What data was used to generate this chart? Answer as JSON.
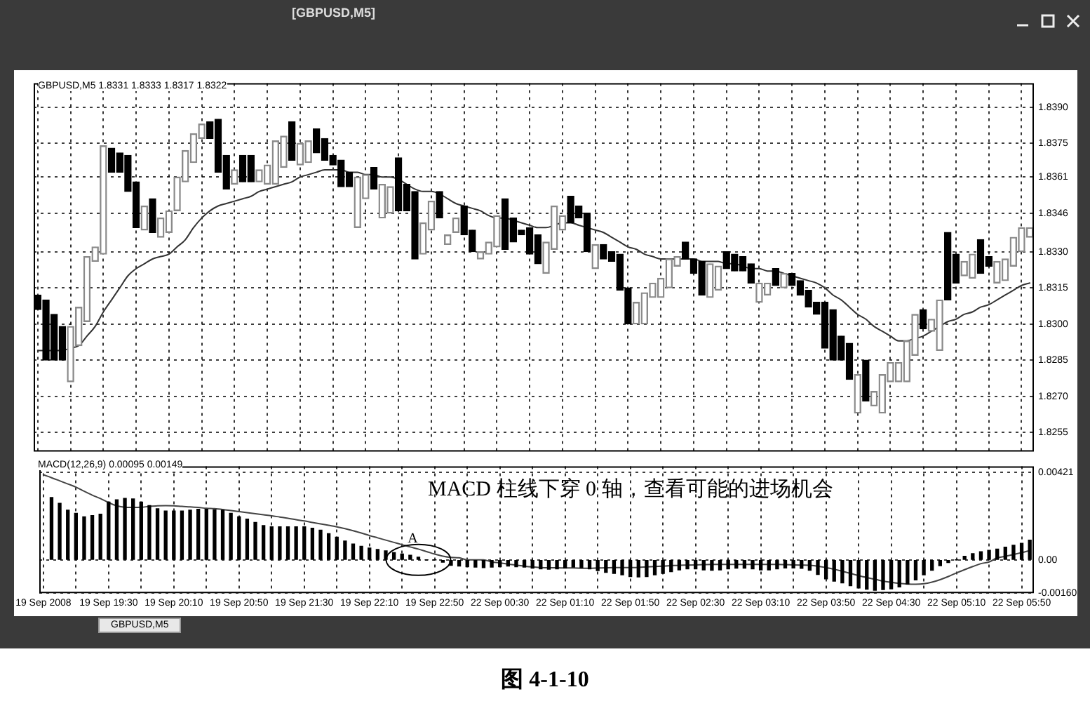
{
  "chart_data": [
    {
      "type": "candlestick",
      "title": "GBPUSD,M5 1.8331 1.8333 1.8317 1.8322",
      "annotations": [
        "[GBPUSD,M5]"
      ],
      "categories": [
        null,
        null,
        null,
        null,
        null,
        null,
        null,
        null,
        null,
        null,
        null,
        null,
        null,
        null,
        null,
        null,
        null,
        null,
        null,
        null,
        null,
        null,
        null,
        null,
        null,
        null,
        null,
        null,
        null,
        null,
        null,
        null,
        null,
        null,
        null,
        null,
        null,
        null,
        null,
        null,
        null,
        null,
        null,
        null,
        null,
        null,
        null,
        null,
        null,
        null,
        null,
        null,
        null,
        null,
        null,
        null,
        null,
        null,
        null,
        null,
        null,
        null,
        null,
        null,
        null,
        null,
        null,
        null,
        null,
        null,
        null,
        null,
        null,
        null,
        null,
        null,
        null,
        null,
        null,
        null,
        null,
        null,
        null,
        null,
        null,
        null,
        null,
        null,
        null,
        null,
        null,
        null,
        null,
        null,
        null,
        null,
        null,
        null,
        null,
        null,
        null,
        null,
        null,
        null,
        null,
        null,
        null,
        null,
        null,
        null,
        null,
        null,
        null,
        null,
        null,
        null,
        null,
        null,
        null,
        null,
        null,
        null
      ],
      "colors": [
        "#000000",
        "#000000",
        "#000000",
        "#000000",
        "#8a8a8a",
        "#8a8a8a",
        "#8a8a8a",
        "#8a8a8a",
        "#8a8a8a",
        "#000000",
        "#000000",
        "#000000",
        "#000000",
        "#8a8a8a",
        "#000000",
        "#8a8a8a",
        "#8a8a8a",
        "#8a8a8a",
        "#8a8a8a",
        "#8a8a8a",
        "#8a8a8a",
        "#000000",
        "#000000",
        "#000000",
        "#8a8a8a",
        "#000000",
        "#000000",
        "#8a8a8a",
        "#8a8a8a",
        "#8a8a8a",
        "#8a8a8a",
        "#000000",
        "#8a8a8a",
        "#8a8a8a",
        "#000000",
        "#000000",
        "#000000",
        "#000000",
        "#000000",
        "#8a8a8a",
        "#8a8a8a",
        "#000000",
        "#8a8a8a",
        "#8a8a8a",
        "#000000",
        "#000000",
        "#000000",
        "#8a8a8a",
        "#8a8a8a",
        "#000000",
        "#8a8a8a",
        "#8a8a8a",
        "#000000",
        "#000000",
        "#8a8a8a",
        "#8a8a8a",
        "#8a8a8a",
        "#000000",
        "#000000",
        "#000000",
        "#000000",
        "#000000",
        "#8a8a8a",
        "#8a8a8a",
        "#8a8a8a",
        "#000000",
        "#000000",
        "#000000",
        "#8a8a8a",
        "#000000",
        "#000000",
        "#000000",
        "#000000",
        "#8a8a8a",
        "#8a8a8a",
        "#8a8a8a",
        "#8a8a8a",
        "#8a8a8a",
        "#8a8a8a",
        "#000000",
        "#000000",
        "#000000",
        "#8a8a8a",
        "#8a8a8a",
        "#000000",
        "#000000",
        "#000000",
        "#000000",
        "#8a8a8a",
        "#8a8a8a",
        "#000000",
        "#8a8a8a",
        "#000000",
        "#000000",
        "#000000",
        "#000000",
        "#000000",
        "#000000",
        "#000000",
        "#000000",
        "#8a8a8a",
        "#000000",
        "#8a8a8a",
        "#8a8a8a",
        "#8a8a8a",
        "#8a8a8a",
        "#8a8a8a",
        "#8a8a8a",
        "#000000",
        "#8a8a8a",
        "#8a8a8a",
        "#000000",
        "#000000",
        "#8a8a8a",
        "#8a8a8a",
        "#000000",
        "#000000",
        "#8a8a8a",
        "#8a8a8a",
        "#8a8a8a",
        "#8a8a8a",
        "#8a8a8a"
      ],
      "ohlc": [
        [
          1.8312,
          1.8312,
          1.8306,
          1.8306
        ],
        [
          1.831,
          1.831,
          1.8285,
          1.8285
        ],
        [
          1.8304,
          1.8304,
          1.8285,
          1.8285
        ],
        [
          1.8299,
          1.8299,
          1.8285,
          1.8285
        ],
        [
          1.8276,
          1.8299,
          1.8276,
          1.8299
        ],
        [
          1.8291,
          1.8307,
          1.8291,
          1.8307
        ],
        [
          1.8301,
          1.8328,
          1.8301,
          1.8328
        ],
        [
          1.8326,
          1.8332,
          1.8326,
          1.8332
        ],
        [
          1.8329,
          1.8374,
          1.8329,
          1.8374
        ],
        [
          1.8373,
          1.8373,
          1.8363,
          1.8363
        ],
        [
          1.8371,
          1.8371,
          1.8363,
          1.8363
        ],
        [
          1.837,
          1.837,
          1.8355,
          1.8355
        ],
        [
          1.8359,
          1.8359,
          1.834,
          1.834
        ],
        [
          1.8339,
          1.8349,
          1.8339,
          1.8349
        ],
        [
          1.8352,
          1.8352,
          1.8338,
          1.8338
        ],
        [
          1.8336,
          1.8344,
          1.8336,
          1.8344
        ],
        [
          1.8338,
          1.8347,
          1.8338,
          1.8347
        ],
        [
          1.8347,
          1.8361,
          1.8347,
          1.8361
        ],
        [
          1.8359,
          1.8372,
          1.8359,
          1.8372
        ],
        [
          1.8367,
          1.8379,
          1.8367,
          1.8379
        ],
        [
          1.8377,
          1.8383,
          1.8377,
          1.8383
        ],
        [
          1.8384,
          1.8384,
          1.8377,
          1.8377
        ],
        [
          1.8385,
          1.8385,
          1.8363,
          1.8363
        ],
        [
          1.837,
          1.837,
          1.8356,
          1.8356
        ],
        [
          1.8358,
          1.8364,
          1.8358,
          1.8364
        ],
        [
          1.837,
          1.837,
          1.8359,
          1.8359
        ],
        [
          1.837,
          1.837,
          1.8359,
          1.8359
        ],
        [
          1.8359,
          1.8364,
          1.8359,
          1.8364
        ],
        [
          1.8358,
          1.8366,
          1.8358,
          1.8366
        ],
        [
          1.8358,
          1.8376,
          1.8358,
          1.8376
        ],
        [
          1.8365,
          1.8378,
          1.8365,
          1.8378
        ],
        [
          1.8384,
          1.8384,
          1.8368,
          1.8368
        ],
        [
          1.8366,
          1.8375,
          1.8366,
          1.8375
        ],
        [
          1.8367,
          1.8376,
          1.8367,
          1.8376
        ],
        [
          1.8381,
          1.8381,
          1.8371,
          1.8371
        ],
        [
          1.8377,
          1.8377,
          1.8368,
          1.8368
        ],
        [
          1.837,
          1.837,
          1.8366,
          1.8366
        ],
        [
          1.8368,
          1.8368,
          1.8357,
          1.8357
        ],
        [
          1.8363,
          1.8363,
          1.8357,
          1.8357
        ],
        [
          1.834,
          1.8361,
          1.834,
          1.8361
        ],
        [
          1.8352,
          1.8362,
          1.8352,
          1.8362
        ],
        [
          1.8365,
          1.8365,
          1.8356,
          1.8356
        ],
        [
          1.8344,
          1.8358,
          1.8344,
          1.8358
        ],
        [
          1.8346,
          1.8357,
          1.8346,
          1.8357
        ],
        [
          1.8369,
          1.8369,
          1.8347,
          1.8347
        ],
        [
          1.8358,
          1.8358,
          1.8347,
          1.8347
        ],
        [
          1.8355,
          1.8355,
          1.8327,
          1.8327
        ],
        [
          1.8329,
          1.8342,
          1.8329,
          1.8342
        ],
        [
          1.8339,
          1.8351,
          1.8339,
          1.8351
        ],
        [
          1.8355,
          1.8355,
          1.8344,
          1.8344
        ],
        [
          1.8333,
          1.8337,
          1.8333,
          1.8337
        ],
        [
          1.8338,
          1.8344,
          1.8338,
          1.8344
        ],
        [
          1.8349,
          1.8349,
          1.8337,
          1.8337
        ],
        [
          1.8339,
          1.8339,
          1.833,
          1.833
        ],
        [
          1.8327,
          1.833,
          1.8327,
          1.833
        ],
        [
          1.8329,
          1.8334,
          1.8329,
          1.8334
        ],
        [
          1.8332,
          1.8345,
          1.8332,
          1.8345
        ],
        [
          1.8352,
          1.8352,
          1.8331,
          1.8331
        ],
        [
          1.8344,
          1.8344,
          1.8334,
          1.8334
        ],
        [
          1.8339,
          1.8339,
          1.8337,
          1.8337
        ],
        [
          1.834,
          1.834,
          1.8329,
          1.8329
        ],
        [
          1.8337,
          1.8337,
          1.8325,
          1.8325
        ],
        [
          1.8321,
          1.8334,
          1.8321,
          1.8334
        ],
        [
          1.8331,
          1.8349,
          1.8331,
          1.8349
        ],
        [
          1.8339,
          1.8345,
          1.8339,
          1.8345
        ],
        [
          1.8353,
          1.8353,
          1.8342,
          1.8342
        ],
        [
          1.8349,
          1.8349,
          1.8344,
          1.8344
        ],
        [
          1.8346,
          1.8346,
          1.833,
          1.833
        ],
        [
          1.8323,
          1.8333,
          1.8323,
          1.8333
        ],
        [
          1.8333,
          1.8333,
          1.8327,
          1.8327
        ],
        [
          1.833,
          1.833,
          1.8326,
          1.8326
        ],
        [
          1.8329,
          1.8329,
          1.8314,
          1.8314
        ],
        [
          1.8315,
          1.8315,
          1.83,
          1.83
        ],
        [
          1.83,
          1.8309,
          1.83,
          1.8309
        ],
        [
          1.83,
          1.8313,
          1.83,
          1.8313
        ],
        [
          1.8311,
          1.8317,
          1.8311,
          1.8317
        ],
        [
          1.8311,
          1.8319,
          1.8311,
          1.8319
        ],
        [
          1.8315,
          1.8327,
          1.8315,
          1.8327
        ],
        [
          1.8324,
          1.8328,
          1.8324,
          1.8328
        ],
        [
          1.8334,
          1.8334,
          1.8327,
          1.8327
        ],
        [
          1.8327,
          1.8327,
          1.8321,
          1.8321
        ],
        [
          1.8326,
          1.8326,
          1.8312,
          1.8312
        ],
        [
          1.8311,
          1.8325,
          1.8311,
          1.8325
        ],
        [
          1.8314,
          1.8324,
          1.8314,
          1.8324
        ],
        [
          1.833,
          1.833,
          1.8323,
          1.8323
        ],
        [
          1.8329,
          1.8329,
          1.8322,
          1.8322
        ],
        [
          1.8328,
          1.8328,
          1.8322,
          1.8322
        ],
        [
          1.8325,
          1.8325,
          1.8317,
          1.8317
        ],
        [
          1.8309,
          1.8317,
          1.8309,
          1.8317
        ],
        [
          1.8312,
          1.8317,
          1.8312,
          1.8317
        ],
        [
          1.8323,
          1.8323,
          1.8316,
          1.8316
        ],
        [
          1.8315,
          1.8321,
          1.8315,
          1.8321
        ],
        [
          1.8321,
          1.8321,
          1.8316,
          1.8316
        ],
        [
          1.8318,
          1.8318,
          1.8312,
          1.8312
        ],
        [
          1.8314,
          1.8314,
          1.8307,
          1.8307
        ],
        [
          1.8309,
          1.8309,
          1.8304,
          1.8304
        ],
        [
          1.8309,
          1.8309,
          1.829,
          1.829
        ],
        [
          1.8306,
          1.8306,
          1.8285,
          1.8285
        ],
        [
          1.8295,
          1.8295,
          1.8285,
          1.8285
        ],
        [
          1.8292,
          1.8292,
          1.8277,
          1.8277
        ],
        [
          1.8263,
          1.8279,
          1.8263,
          1.8279
        ],
        [
          1.8285,
          1.8285,
          1.8268,
          1.8268
        ],
        [
          1.8266,
          1.8272,
          1.8266,
          1.8272
        ],
        [
          1.8263,
          1.8279,
          1.8263,
          1.8279
        ],
        [
          1.8276,
          1.8284,
          1.8276,
          1.8284
        ],
        [
          1.8276,
          1.8284,
          1.8276,
          1.8284
        ],
        [
          1.8276,
          1.8293,
          1.8276,
          1.8293
        ],
        [
          1.8287,
          1.8304,
          1.8287,
          1.8304
        ],
        [
          1.8306,
          1.8306,
          1.8298,
          1.8298
        ],
        [
          1.8297,
          1.8302,
          1.8297,
          1.8302
        ],
        [
          1.8289,
          1.831,
          1.8289,
          1.831
        ],
        [
          1.8338,
          1.8338,
          1.831,
          1.831
        ],
        [
          1.8329,
          1.8329,
          1.8317,
          1.8317
        ],
        [
          1.832,
          1.8326,
          1.832,
          1.8326
        ],
        [
          1.8319,
          1.8329,
          1.8319,
          1.8329
        ],
        [
          1.8335,
          1.8335,
          1.8321,
          1.8321
        ],
        [
          1.8328,
          1.8328,
          1.8324,
          1.8324
        ],
        [
          1.8317,
          1.8326,
          1.8317,
          1.8326
        ],
        [
          1.8318,
          1.8327,
          1.8318,
          1.8327
        ],
        [
          1.8324,
          1.8336,
          1.8324,
          1.8336
        ],
        [
          1.833,
          1.834,
          1.833,
          1.834
        ],
        [
          1.8336,
          1.834,
          1.8336,
          1.834
        ]
      ],
      "series": [
        {
          "type": "line",
          "color": "#333333",
          "values": [
            1.8289,
            1.8289,
            1.8289,
            1.8289,
            1.829,
            1.8291,
            1.8295,
            1.8299,
            1.8305,
            1.831,
            1.8315,
            1.832,
            1.8323,
            1.8325,
            1.8327,
            1.8328,
            1.8329,
            1.8332,
            1.8335,
            1.834,
            1.8344,
            1.8347,
            1.8349,
            1.835,
            1.8351,
            1.8352,
            1.8353,
            1.8355,
            1.8356,
            1.8357,
            1.8358,
            1.8359,
            1.8361,
            1.8362,
            1.8363,
            1.8364,
            1.8364,
            1.8364,
            1.8363,
            1.8363,
            1.8362,
            1.8362,
            1.8361,
            1.8361,
            1.836,
            1.8358,
            1.8356,
            1.8355,
            1.8355,
            1.8354,
            1.8352,
            1.835,
            1.8349,
            1.8348,
            1.8347,
            1.8345,
            1.8344,
            1.8344,
            1.8343,
            1.8342,
            1.8341,
            1.834,
            1.834,
            1.8341,
            1.8342,
            1.8342,
            1.8341,
            1.834,
            1.8339,
            1.8338,
            1.8336,
            1.8334,
            1.8332,
            1.8331,
            1.8329,
            1.8328,
            1.8327,
            1.8327,
            1.8327,
            1.8327,
            1.8327,
            1.8326,
            1.8326,
            1.8326,
            1.8325,
            1.8325,
            1.8324,
            1.8323,
            1.8323,
            1.8322,
            1.8322,
            1.8321,
            1.832,
            1.8319,
            1.8318,
            1.8317,
            1.8315,
            1.8312,
            1.831,
            1.8307,
            1.8304,
            1.8302,
            1.8299,
            1.8297,
            1.8295,
            1.8293,
            1.8293,
            1.8294,
            1.8295,
            1.8297,
            1.8299,
            1.8301,
            1.8302,
            1.8304,
            1.8305,
            1.8307,
            1.8308,
            1.831,
            1.8312,
            1.8314,
            1.8316,
            1.8317
          ]
        }
      ],
      "ylim": [
        1.8247,
        1.84
      ],
      "yticks": [
        {
          "value": 1.839,
          "label": "1.8390"
        },
        1.8375,
        1.8361,
        1.8346,
        {
          "value": 1.833,
          "label": "1.8330"
        },
        1.8315,
        {
          "value": 1.83,
          "label": "1.8300"
        },
        1.8285,
        {
          "value": 1.827,
          "label": "1.8270"
        },
        1.8255
      ],
      "grid": true,
      "tick_labels": "y"
    },
    {
      "type": "bar",
      "title": "MACD(12,26,9) 0.00095 0.00149",
      "annotations": [
        "MACD 柱线下穿 0 轴，查看可能的进场机会",
        {
          "text": "A",
          "y": 0
        },
        "GBPUSD,M5",
        "图 4-1-10"
      ],
      "categories": [
        "19 Sep 2008",
        null,
        null,
        null,
        null,
        null,
        null,
        null,
        "19 Sep 19:30",
        null,
        null,
        null,
        null,
        null,
        null,
        null,
        "19 Sep 20:10",
        null,
        null,
        null,
        null,
        null,
        null,
        null,
        "19 Sep 20:50",
        null,
        null,
        null,
        null,
        null,
        null,
        null,
        "19 Sep 21:30",
        null,
        null,
        null,
        null,
        null,
        null,
        null,
        "19 Sep 22:10",
        null,
        null,
        null,
        null,
        null,
        null,
        null,
        "19 Sep 22:50",
        null,
        null,
        null,
        null,
        null,
        null,
        null,
        "22 Sep 00:30",
        null,
        null,
        null,
        null,
        null,
        null,
        null,
        "22 Sep 01:10",
        null,
        null,
        null,
        null,
        null,
        null,
        null,
        "22 Sep 01:50",
        null,
        null,
        null,
        null,
        null,
        null,
        null,
        "22 Sep 02:30",
        null,
        null,
        null,
        null,
        null,
        null,
        null,
        "22 Sep 03:10",
        null,
        null,
        null,
        null,
        null,
        null,
        null,
        "22 Sep 03:50",
        null,
        null,
        null,
        null,
        null,
        null,
        null,
        "22 Sep 04:30",
        null,
        null,
        null,
        null,
        null,
        null,
        null,
        "22 Sep 05:10",
        null,
        null,
        null,
        null,
        null,
        null,
        null,
        "22 Sep 05:50",
        null
      ],
      "series": [
        {
          "color": "#000000",
          "values": [
            null,
            0.003,
            0.00272,
            0.00239,
            0.00224,
            0.00207,
            0.00213,
            0.0022,
            0.00278,
            0.00289,
            0.00296,
            0.00293,
            0.00278,
            0.00261,
            0.00246,
            0.00235,
            0.00235,
            0.00235,
            0.00239,
            0.00243,
            0.00243,
            0.00241,
            0.00239,
            0.00224,
            0.00207,
            0.00196,
            0.0018,
            0.00165,
            0.00159,
            0.00159,
            0.00159,
            0.00159,
            0.00159,
            0.00152,
            0.00143,
            0.00126,
            0.00109,
            0.00091,
            0.00076,
            0.00065,
            0.00057,
            0.0005,
            0.00043,
            0.00035,
            0.00028,
            0.00022,
            0.00013,
            0,
            0,
            -0.00011,
            -0.00026,
            -0.0003,
            -0.00033,
            -0.00035,
            -0.00037,
            -0.00035,
            -0.00033,
            -0.0003,
            -0.00033,
            -0.00035,
            -0.0004,
            -0.00043,
            -0.00045,
            -0.00043,
            -0.00039,
            -0.00035,
            -0.00037,
            -0.00043,
            -0.00052,
            -0.0006,
            -0.00065,
            -0.00072,
            -0.0008,
            -0.00082,
            -0.0008,
            -0.00072,
            -0.00065,
            -0.00057,
            -0.00048,
            -0.00043,
            -0.00043,
            -0.00048,
            -0.0005,
            -0.00048,
            -0.00043,
            -0.0004,
            -0.0004,
            -0.00043,
            -0.00048,
            -0.00048,
            -0.00043,
            -0.00039,
            -0.00039,
            -0.00041,
            -0.0005,
            -0.0007,
            -0.00091,
            -0.00102,
            -0.00111,
            -0.00124,
            -0.00135,
            -0.00141,
            -0.00146,
            -0.00143,
            -0.00139,
            -0.0013,
            -0.00117,
            -0.00096,
            -0.00072,
            -0.0005,
            -0.00028,
            -0.00013,
            0,
            0.00017,
            0.0003,
            0.00039,
            0.00046,
            0.00052,
            0.00061,
            0.0007,
            0.0008,
            0.00095
          ]
        },
        {
          "type": "line",
          "color": "#444444",
          "values": [
            0.00409,
            0.00395,
            0.0038,
            0.00365,
            0.0035,
            0.0033,
            0.00311,
            0.00295,
            0.00275,
            0.0026,
            0.00253,
            0.00252,
            0.00253,
            0.00257,
            0.0026,
            0.00261,
            0.0026,
            0.00257,
            0.00255,
            0.00252,
            0.00248,
            0.00246,
            0.00242,
            0.00237,
            0.00232,
            0.00227,
            0.00222,
            0.00217,
            0.00212,
            0.00206,
            0.002,
            0.00193,
            0.00187,
            0.0018,
            0.00173,
            0.00166,
            0.00159,
            0.0015,
            0.0014,
            0.00129,
            0.00117,
            0.00106,
            0.00095,
            0.00084,
            0.00073,
            0.00062,
            0.00052,
            0.0004,
            0.00028,
            0.00018,
            0.00012,
            0.0001,
            0,
            0,
            0,
            -0.0001,
            -0.00014,
            -0.0002,
            -0.00025,
            -0.0003,
            -0.00034,
            -0.00037,
            -0.00038,
            -0.00038,
            -0.00039,
            -0.00039,
            -0.0004,
            -0.0004,
            -0.00039,
            -0.00038,
            -0.00037,
            -0.00037,
            -0.00037,
            -0.00036,
            -0.00034,
            -0.00032,
            -0.0003,
            -0.00028,
            -0.00026,
            -0.00025,
            -0.00024,
            -0.00023,
            -0.00022,
            -0.00022,
            -0.00022,
            -0.00022,
            -0.00022,
            -0.00022,
            -0.00022,
            -0.00022,
            -0.00022,
            -0.00023,
            -0.00024,
            -0.00025,
            -0.00026,
            -0.0003,
            -0.00037,
            -0.00045,
            -0.00055,
            -0.00065,
            -0.00076,
            -0.00085,
            -0.00093,
            -0.00102,
            -0.00108,
            -0.00113,
            -0.00116,
            -0.00117,
            -0.00115,
            -0.00107,
            -0.00095,
            -0.0008,
            -0.00063,
            -0.00047,
            -0.00032,
            -0.00018,
            -0.0001,
            0.0001,
            0.00017,
            0.00026,
            0.00035,
            0.00045
          ]
        }
      ],
      "ylim": [
        -0.0016,
        0.0045
      ],
      "yticks": [
        {
          "value": 0.00421,
          "label": "0.00421"
        },
        {
          "value": 0,
          "label": "0.00"
        },
        {
          "value": -0.0016,
          "label": "-0.00160"
        }
      ],
      "grid": true
    }
  ]
}
